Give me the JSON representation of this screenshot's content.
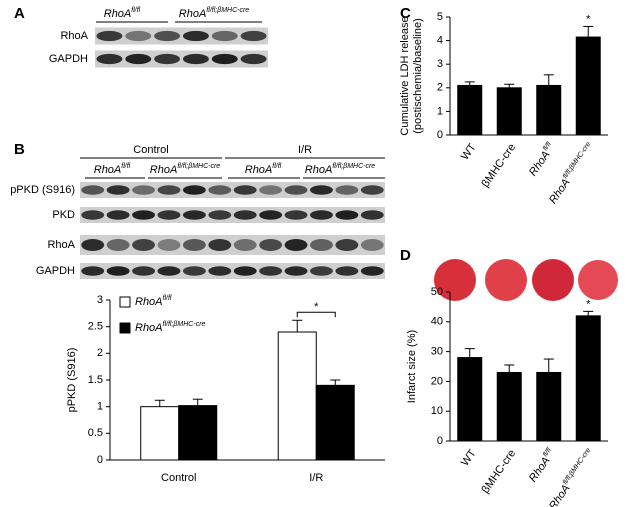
{
  "blot_a": {
    "panel": "A",
    "columns": [
      {
        "base": "RhoA",
        "sup": "fl/fl"
      },
      {
        "base": "RhoA",
        "sup": "fl/fl;βMHC-cre"
      }
    ],
    "rows": [
      "RhoA",
      "GAPDH"
    ]
  },
  "blot_b": {
    "panel": "B",
    "groups": [
      "Control",
      "I/R"
    ],
    "columns": [
      {
        "base": "RhoA",
        "sup": "fl/fl"
      },
      {
        "base": "RhoA",
        "sup": "fl/fl;βMHC-cre"
      },
      {
        "base": "RhoA",
        "sup": "fl/fl"
      },
      {
        "base": "RhoA",
        "sup": "fl/fl;βMHC-cre"
      }
    ],
    "rows": [
      "pPKD (S916)",
      "PKD",
      "RhoA",
      "GAPDH"
    ]
  },
  "chart_data": [
    {
      "type": "bar",
      "ylabel": [
        "pPKD (S916)"
      ],
      "categories": [
        {
          "base": "Control"
        },
        {
          "base": "I/R"
        }
      ],
      "series": [
        {
          "name": {
            "base": "RhoA",
            "sup": "fl/fl"
          },
          "color": "#ffffff",
          "values": [
            1.0,
            2.4
          ],
          "errors": [
            0.12,
            0.22
          ]
        },
        {
          "name": {
            "base": "RhoA",
            "sup": "fl/fl;βMHC-cre"
          },
          "color": "#000000",
          "values": [
            1.02,
            1.4
          ],
          "errors": [
            0.12,
            0.1
          ]
        }
      ],
      "ylim": [
        0,
        3
      ],
      "yticks": [
        0,
        0.5,
        1,
        1.5,
        2,
        2.5,
        3
      ],
      "legend": "top-left",
      "annotation": "*"
    },
    {
      "type": "bar",
      "panel": "C",
      "ylabel": [
        "Cumulative LDH release",
        "(postischemia/baseline)"
      ],
      "categories": [
        {
          "base": "WT"
        },
        {
          "base": "βMHC-cre"
        },
        {
          "base": "RhoA",
          "sup": "fl/fl"
        },
        {
          "base": "RhoA",
          "sup": "fl/fl;βMHC-cre"
        }
      ],
      "series": [
        {
          "color": "#000000",
          "values": [
            2.1,
            2.0,
            2.1,
            4.15
          ],
          "errors": [
            0.15,
            0.15,
            0.45,
            0.45
          ]
        }
      ],
      "ylim": [
        0,
        5
      ],
      "yticks": [
        0,
        1,
        2,
        3,
        4,
        5
      ],
      "annotation": "*"
    },
    {
      "type": "bar",
      "panel": "D",
      "ylabel": [
        "Infarct size (%)"
      ],
      "categories": [
        {
          "base": "WT"
        },
        {
          "base": "βMHC-cre"
        },
        {
          "base": "RhoA",
          "sup": "fl/fl"
        },
        {
          "base": "RhoA",
          "sup": "fl/fl;βMHC-cre"
        }
      ],
      "series": [
        {
          "color": "#000000",
          "values": [
            28,
            23,
            23,
            42
          ],
          "errors": [
            3,
            2.5,
            4.5,
            1.5
          ]
        }
      ],
      "ylim": [
        0,
        50
      ],
      "yticks": [
        0,
        10,
        20,
        30,
        40,
        50
      ],
      "annotation": "*"
    }
  ]
}
